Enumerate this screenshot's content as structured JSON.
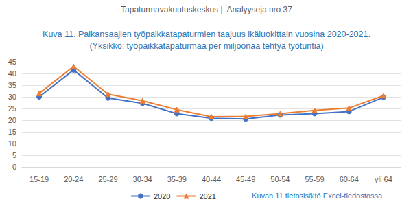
{
  "chart_data": {
    "type": "line",
    "header": "Tapaturmavakuutuskeskus |  Analyyseja nro 37",
    "title": "Kuva 11. Palkansaajien työpaikkatapaturmien taajuus ikäluokittain vuosina 2020-2021.",
    "subtitle": "(Yksikkö: työpaikkatapaturmaa per miljoonaa tehtyä työtuntia)",
    "annotation": "Kuvan 11 tietosisältö Excel-tiedostossa",
    "categories": [
      "15-19",
      "20-24",
      "25-29",
      "30-34",
      "35-39",
      "40-44",
      "45-49",
      "50-54",
      "55-59",
      "60-64",
      "yli 64"
    ],
    "series": [
      {
        "name": "2020",
        "color": "#4472c4",
        "marker": "circle",
        "values": [
          30.0,
          41.5,
          29.5,
          27.2,
          22.8,
          20.8,
          20.5,
          22.2,
          22.8,
          23.7,
          29.8
        ]
      },
      {
        "name": "2021",
        "color": "#ed7d31",
        "marker": "triangle",
        "values": [
          31.5,
          43.0,
          31.2,
          28.3,
          24.5,
          21.5,
          21.6,
          22.8,
          24.2,
          25.2,
          30.5
        ]
      }
    ],
    "ylim": [
      0,
      45
    ],
    "yticks": [
      0,
      5,
      10,
      15,
      20,
      25,
      30,
      35,
      40,
      45
    ],
    "grid": true,
    "legend": "bottom"
  }
}
